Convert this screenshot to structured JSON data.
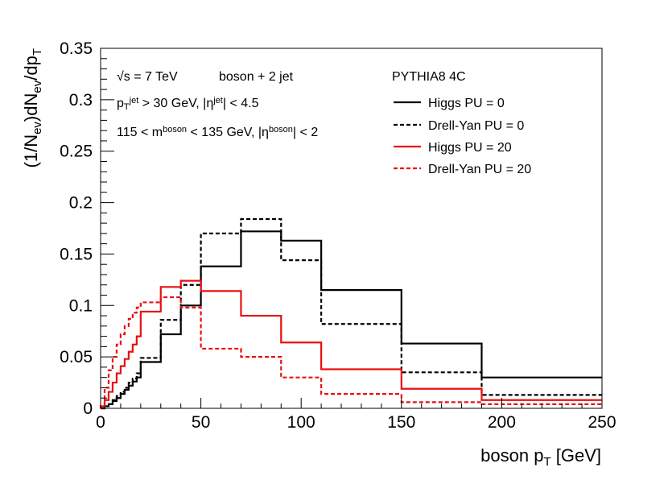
{
  "chart_data": {
    "type": "line",
    "style": "step-histogram",
    "xlabel": "boson p_T [GeV]",
    "ylabel": "(1/N_ev)dN_ev/dp_T",
    "xlim": [
      0,
      250
    ],
    "ylim": [
      0,
      0.35
    ],
    "x_ticks": [
      0,
      50,
      100,
      150,
      200,
      250
    ],
    "y_ticks": [
      0,
      0.05,
      0.1,
      0.15,
      0.2,
      0.25,
      0.3,
      0.35
    ],
    "x_tick_labels": [
      "0",
      "50",
      "100",
      "150",
      "200",
      "250"
    ],
    "y_tick_labels": [
      "0",
      "0.05",
      "0.1",
      "0.15",
      "0.2",
      "0.25",
      "0.3",
      "0.35"
    ],
    "grid": false,
    "legend_position": "top-right",
    "legend_header": "PYTHIA8 4C",
    "annotations": [
      {
        "id": "sqrt_s",
        "segments": [
          {
            "t": "√s = 7 TeV"
          }
        ]
      },
      {
        "id": "process",
        "segments": [
          {
            "t": "boson + 2 jet"
          }
        ]
      },
      {
        "id": "jet_cut",
        "segments": [
          {
            "t": "p"
          },
          {
            "t": "T",
            "sub": true
          },
          {
            "t": "jet",
            "sup": true
          },
          {
            "t": " > 30 GeV, |η"
          },
          {
            "t": "jet",
            "sup": true
          },
          {
            "t": "| < 4.5"
          }
        ]
      },
      {
        "id": "mass_cut",
        "segments": [
          {
            "t": "115 < m"
          },
          {
            "t": "boson",
            "sup": true
          },
          {
            "t": " < 135 GeV, |η"
          },
          {
            "t": "boson",
            "sup": true
          },
          {
            "t": "| < 2"
          }
        ]
      }
    ],
    "series": [
      {
        "name": "Higgs PU = 0",
        "color": "#000000",
        "dashed": false,
        "edges": [
          0,
          2,
          4,
          6,
          8,
          10,
          12,
          14,
          16,
          18,
          20,
          30,
          40,
          50,
          70,
          90,
          110,
          150,
          190,
          250
        ],
        "values": [
          0.0,
          0.002,
          0.004,
          0.007,
          0.01,
          0.014,
          0.018,
          0.022,
          0.026,
          0.03,
          0.045,
          0.072,
          0.1,
          0.138,
          0.172,
          0.163,
          0.115,
          0.063,
          0.03
        ]
      },
      {
        "name": "Drell-Yan PU = 0",
        "color": "#000000",
        "dashed": true,
        "edges": [
          0,
          2,
          4,
          6,
          8,
          10,
          12,
          14,
          16,
          18,
          20,
          30,
          40,
          50,
          70,
          90,
          110,
          150,
          190,
          250
        ],
        "values": [
          0.0,
          0.002,
          0.004,
          0.008,
          0.012,
          0.016,
          0.02,
          0.025,
          0.029,
          0.034,
          0.049,
          0.086,
          0.12,
          0.17,
          0.184,
          0.144,
          0.082,
          0.035,
          0.013
        ]
      },
      {
        "name": "Higgs PU = 20",
        "color": "#e8100e",
        "dashed": false,
        "edges": [
          0,
          2,
          4,
          6,
          8,
          10,
          12,
          14,
          16,
          18,
          20,
          30,
          40,
          50,
          70,
          90,
          110,
          150,
          190,
          250
        ],
        "values": [
          0.002,
          0.008,
          0.016,
          0.025,
          0.034,
          0.041,
          0.048,
          0.055,
          0.062,
          0.07,
          0.094,
          0.118,
          0.124,
          0.114,
          0.09,
          0.064,
          0.038,
          0.019,
          0.008
        ]
      },
      {
        "name": "Drell-Yan PU = 20",
        "color": "#e8100e",
        "dashed": true,
        "edges": [
          0,
          2,
          4,
          6,
          8,
          10,
          12,
          14,
          16,
          18,
          20,
          30,
          40,
          50,
          70,
          90,
          110,
          150,
          190,
          250
        ],
        "values": [
          0.002,
          0.02,
          0.037,
          0.05,
          0.062,
          0.072,
          0.08,
          0.087,
          0.093,
          0.098,
          0.103,
          0.108,
          0.098,
          0.058,
          0.05,
          0.03,
          0.014,
          0.006,
          0.004
        ]
      }
    ]
  }
}
